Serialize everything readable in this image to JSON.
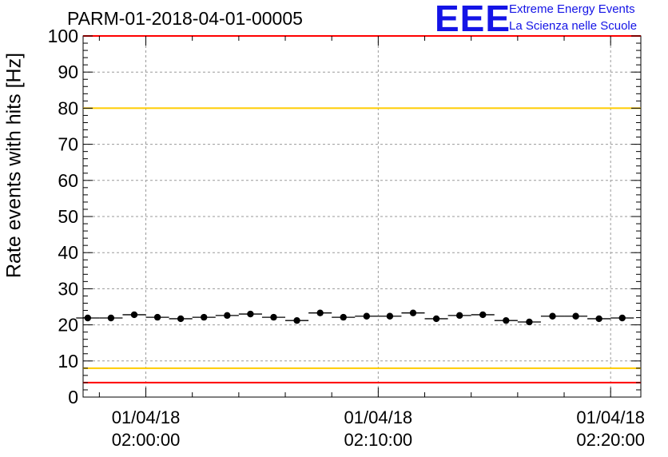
{
  "title": "PARM-01-2018-04-01-00005",
  "logo": {
    "mark": "EEE",
    "line1": "Extreme Energy Events",
    "line2": "La Scienza nelle Scuole",
    "color": "#1414e6"
  },
  "chart_data": {
    "type": "scatter",
    "title": "PARM-01-2018-04-01-00005",
    "xlabel": "",
    "ylabel": "Rate events with hits [Hz]",
    "ylim": [
      0,
      100
    ],
    "xlim_minutes": [
      -2.7,
      21.3
    ],
    "y_ticks": [
      0,
      10,
      20,
      30,
      40,
      50,
      60,
      70,
      80,
      90,
      100
    ],
    "x_ticks": [
      {
        "minute": 0,
        "date": "01/04/18",
        "time": "02:00:00"
      },
      {
        "minute": 10,
        "date": "01/04/18",
        "time": "02:10:00"
      },
      {
        "minute": 20,
        "date": "01/04/18",
        "time": "02:20:00"
      }
    ],
    "grid": true,
    "bin_width_minutes": 1,
    "series": [
      {
        "marker": "filled-circle",
        "color": "#000000",
        "x_minutes": [
          -2.5,
          -1.5,
          -0.5,
          0.5,
          1.5,
          2.5,
          3.5,
          4.5,
          5.5,
          6.5,
          7.5,
          8.5,
          9.5,
          10.5,
          11.5,
          12.5,
          13.5,
          14.5,
          15.5,
          16.5,
          17.5,
          18.5,
          19.5,
          20.5
        ],
        "values": [
          21.9,
          21.9,
          22.8,
          22.1,
          21.7,
          22.1,
          22.6,
          23.0,
          22.1,
          21.2,
          23.3,
          22.1,
          22.4,
          22.4,
          23.3,
          21.7,
          22.6,
          22.8,
          21.2,
          20.8,
          22.4,
          22.4,
          21.7,
          21.9
        ]
      }
    ],
    "reference_lines": [
      {
        "y": 100,
        "color": "#ff0000"
      },
      {
        "y": 4,
        "color": "#ff0000"
      },
      {
        "y": 80,
        "color": "#ffcc00"
      },
      {
        "y": 8,
        "color": "#ffcc00"
      }
    ]
  }
}
